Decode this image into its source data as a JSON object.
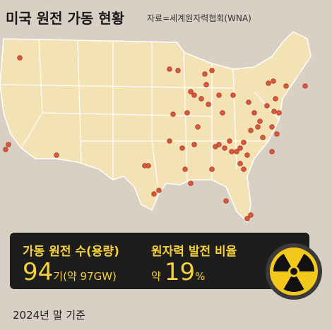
{
  "header": {
    "title": "미국 원전 가동 현황",
    "source": "자료=세계원자력협회(WNA)"
  },
  "stats": [
    {
      "label": "가동 원전 수(용량)",
      "value": "94",
      "unit": "기(약 97GW)"
    },
    {
      "label": "원자력 발전 비율",
      "prefix": "약",
      "value": "19",
      "unit": "%"
    }
  ],
  "footnote": "2024년 말 기준"
}
